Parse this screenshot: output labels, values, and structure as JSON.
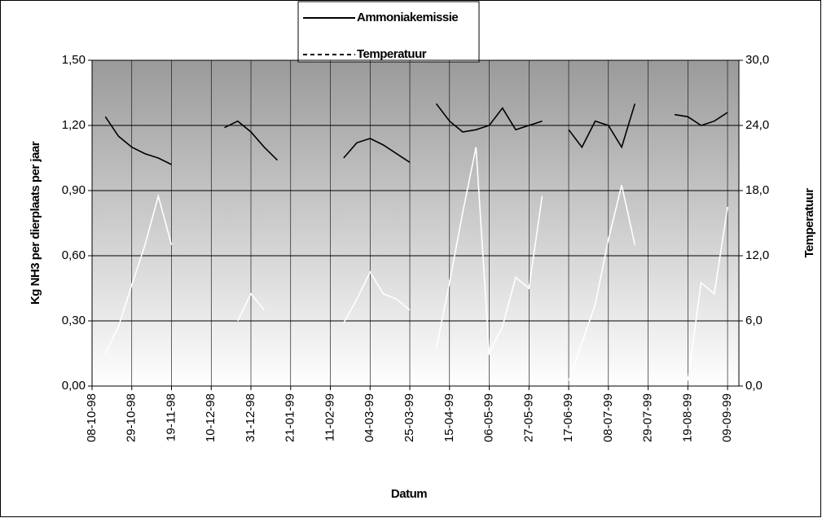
{
  "chart_data": {
    "type": "line",
    "x_label": "Datum",
    "y_label": "Kg NH3 per dierplaats per jaar",
    "y2_label": "Temperatuur",
    "x": [
      "08-10-98",
      "15-10-98",
      "22-10-98",
      "29-10-98",
      "05-11-98",
      "12-11-98",
      "19-11-98",
      "26-11-98",
      "03-12-98",
      "10-12-98",
      "17-12-98",
      "24-12-98",
      "31-12-98",
      "07-01-99",
      "14-01-99",
      "21-01-99",
      "28-01-99",
      "04-02-99",
      "11-02-99",
      "18-02-99",
      "25-02-99",
      "04-03-99",
      "11-03-99",
      "18-03-99",
      "25-03-99",
      "01-04-99",
      "08-04-99",
      "15-04-99",
      "22-04-99",
      "29-04-99",
      "06-05-99",
      "13-05-99",
      "20-05-99",
      "27-05-99",
      "03-06-99",
      "10-06-99",
      "17-06-99",
      "24-06-99",
      "01-07-99",
      "08-07-99",
      "15-07-99",
      "22-07-99",
      "29-07-99",
      "05-08-99",
      "12-08-99",
      "19-08-99",
      "26-08-99",
      "02-09-99",
      "09-09-99"
    ],
    "series": [
      {
        "name": "Ammoniakemissie",
        "color": "#000000",
        "axis": "y",
        "values": [
          null,
          1.24,
          1.15,
          1.1,
          1.07,
          1.05,
          1.02,
          null,
          null,
          null,
          1.19,
          1.22,
          1.17,
          1.1,
          1.04,
          null,
          null,
          null,
          null,
          1.05,
          1.12,
          1.14,
          1.11,
          1.07,
          1.03,
          null,
          1.3,
          1.22,
          1.17,
          1.18,
          1.2,
          1.28,
          1.18,
          1.2,
          1.22,
          null,
          1.18,
          1.1,
          1.22,
          1.2,
          1.1,
          1.3,
          null,
          null,
          1.25,
          1.24,
          1.2,
          1.22,
          1.26
        ]
      },
      {
        "name": "Temperatuur",
        "color": "#ffffff",
        "axis": "y2",
        "values": [
          null,
          3.0,
          5.5,
          9.3,
          13.0,
          17.5,
          13.0,
          null,
          null,
          null,
          null,
          6.0,
          8.5,
          7.0,
          null,
          null,
          null,
          null,
          null,
          5.8,
          8.0,
          10.5,
          8.5,
          8.0,
          7.0,
          null,
          3.5,
          9.5,
          16.0,
          22.0,
          3.0,
          5.5,
          10.0,
          9.0,
          17.5,
          null,
          0.5,
          4.0,
          7.5,
          13.5,
          18.5,
          13.0,
          null,
          null,
          null,
          0.5,
          9.5,
          8.5,
          16.5
        ]
      }
    ],
    "xlim": [
      "08-10-98",
      "15-09-99"
    ],
    "xticks": [
      "08-10-98",
      "29-10-98",
      "19-11-98",
      "10-12-98",
      "31-12-98",
      "21-01-99",
      "11-02-99",
      "04-03-99",
      "25-03-99",
      "15-04-99",
      "06-05-99",
      "27-05-99",
      "17-06-99",
      "08-07-99",
      "29-07-99",
      "19-08-99",
      "09-09-99"
    ],
    "ylim": [
      0,
      1.5
    ],
    "yticks": [
      {
        "value": 0,
        "label": "0,00"
      },
      {
        "value": 0.3,
        "label": "0,30"
      },
      {
        "value": 0.6,
        "label": "0,60"
      },
      {
        "value": 0.9,
        "label": "0,90"
      },
      {
        "value": 1.2,
        "label": "1,20"
      },
      {
        "value": 1.5,
        "label": "1,50"
      }
    ],
    "y2lim": [
      0,
      30
    ],
    "y2ticks": [
      {
        "value": 0,
        "label": "0,0"
      },
      {
        "value": 6,
        "label": "6,0"
      },
      {
        "value": 12,
        "label": "12,0"
      },
      {
        "value": 18,
        "label": "18,0"
      },
      {
        "value": 24,
        "label": "24,0"
      },
      {
        "value": 30,
        "label": "30,0"
      }
    ],
    "grid": true,
    "legend": "top"
  }
}
